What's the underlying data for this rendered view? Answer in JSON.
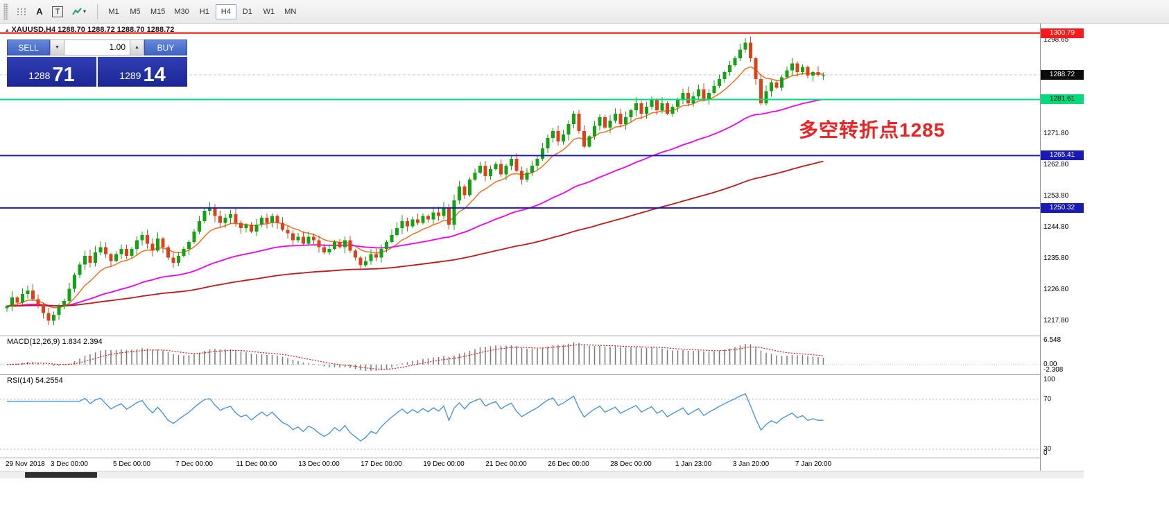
{
  "icons": {
    "collapse": "▴",
    "caret_down": "▾",
    "stepper_up": "▲",
    "stepper_down": "▼",
    "tool_a": "A",
    "tool_t": "T"
  },
  "toolbar": {
    "timeframes": [
      "M1",
      "M5",
      "M15",
      "M30",
      "H1",
      "H4",
      "D1",
      "W1",
      "MN"
    ],
    "active_timeframe": "H4"
  },
  "trade_panel": {
    "sell_label": "SELL",
    "buy_label": "BUY",
    "lot_value": "1.00",
    "sell_price_major": "1288",
    "sell_price_minor": "71",
    "buy_price_major": "1289",
    "buy_price_minor": "14"
  },
  "chart_data": {
    "type": "candlestick",
    "symbol": "XAUUSD",
    "timeframe": "H4",
    "ohlc_display": "XAUUSD,H4 1288.70 1288.72 1288.70 1288.72",
    "current": {
      "price": 1288.72,
      "label": "1288.72",
      "badge_color": "#0b0b0b",
      "text_color": "#ffffff"
    },
    "price_range": [
      1213.5,
      1303.5
    ],
    "up_color": "#10a410",
    "down_color": "#e04018",
    "closes": [
      1222.0,
      1224.5,
      1223.0,
      1225.5,
      1226.5,
      1224.0,
      1222.5,
      1220.0,
      1217.8,
      1219.5,
      1222.0,
      1223.5,
      1227.0,
      1231.0,
      1234.0,
      1236.5,
      1234.5,
      1237.5,
      1239.0,
      1237.0,
      1235.0,
      1237.0,
      1238.5,
      1236.5,
      1238.5,
      1241.0,
      1242.5,
      1240.0,
      1238.0,
      1241.5,
      1239.0,
      1236.0,
      1234.5,
      1236.5,
      1238.5,
      1240.5,
      1243.5,
      1246.5,
      1249.5,
      1250.3,
      1248.0,
      1246.0,
      1247.5,
      1248.5,
      1246.0,
      1244.5,
      1245.5,
      1243.5,
      1245.5,
      1247.5,
      1246.0,
      1248.0,
      1246.0,
      1244.0,
      1243.0,
      1241.0,
      1242.0,
      1240.0,
      1242.0,
      1241.0,
      1239.0,
      1237.5,
      1238.5,
      1240.5,
      1239.0,
      1241.0,
      1238.0,
      1236.0,
      1233.8,
      1235.0,
      1237.0,
      1236.0,
      1238.5,
      1240.5,
      1242.5,
      1244.5,
      1246.5,
      1245.0,
      1247.0,
      1246.0,
      1248.0,
      1247.0,
      1249.0,
      1248.0,
      1250.5,
      1245.5,
      1252.5,
      1256.5,
      1254.0,
      1258.5,
      1260.5,
      1262.5,
      1259.5,
      1261.5,
      1263.0,
      1260.0,
      1262.5,
      1264.5,
      1261.0,
      1258.5,
      1260.5,
      1262.5,
      1264.5,
      1267.5,
      1270.5,
      1272.5,
      1269.5,
      1271.5,
      1274.5,
      1277.5,
      1272.5,
      1268.0,
      1271.0,
      1274.0,
      1276.5,
      1273.5,
      1275.5,
      1277.5,
      1274.5,
      1276.5,
      1278.5,
      1280.5,
      1277.5,
      1279.5,
      1281.5,
      1278.5,
      1280.5,
      1277.5,
      1279.5,
      1281.5,
      1283.5,
      1280.5,
      1282.5,
      1284.5,
      1281.5,
      1283.5,
      1285.5,
      1287.5,
      1289.5,
      1291.5,
      1293.5,
      1296.0,
      1298.0,
      1293.5,
      1287.5,
      1280.5,
      1284.0,
      1286.5,
      1285.0,
      1288.0,
      1290.0,
      1292.0,
      1289.5,
      1291.0,
      1288.5,
      1289.5,
      1288.7,
      1288.72
    ],
    "moving_averages": [
      {
        "name": "fast",
        "period": 10,
        "color": "#f07020",
        "width": 1.5
      },
      {
        "name": "medium",
        "period": 50,
        "color": "#f000f0",
        "width": 1.8
      },
      {
        "name": "slow",
        "period": 140,
        "color": "#c01818",
        "width": 1.8
      }
    ],
    "levels": [
      {
        "label": "1300.79",
        "price": 1300.79,
        "color": "#ff1a1a",
        "text_color": "#ffffff",
        "width": 2.2
      },
      {
        "label": "1281.61",
        "price": 1281.61,
        "color": "#00dc7d",
        "text_color": "#000000",
        "width": 2
      },
      {
        "label": "1265.41",
        "price": 1265.41,
        "color": "#1a1ab8",
        "text_color": "#ffffff",
        "width": 2
      },
      {
        "label": "1250.32",
        "price": 1250.32,
        "color": "#1a1ab8",
        "text_color": "#ffffff",
        "width": 2
      }
    ],
    "y_ticks": [
      "1298.65",
      "1271.80",
      "1262.80",
      "1253.80",
      "1244.80",
      "1235.80",
      "1226.80",
      "1217.80"
    ],
    "annotation": {
      "text": "多空转折点1285",
      "color": "#ee2222"
    },
    "time_labels": [
      {
        "label": "29 Nov 2018",
        "index": 0
      },
      {
        "label": "3 Dec 00:00",
        "index": 12
      },
      {
        "label": "5 Dec 00:00",
        "index": 24
      },
      {
        "label": "7 Dec 00:00",
        "index": 36
      },
      {
        "label": "11 Dec 00:00",
        "index": 48
      },
      {
        "label": "13 Dec 00:00",
        "index": 60
      },
      {
        "label": "17 Dec 00:00",
        "index": 72
      },
      {
        "label": "19 Dec 00:00",
        "index": 84
      },
      {
        "label": "21 Dec 00:00",
        "index": 96
      },
      {
        "label": "26 Dec 00:00",
        "index": 108
      },
      {
        "label": "28 Dec 00:00",
        "index": 120
      },
      {
        "label": "1 Jan 23:00",
        "index": 132
      },
      {
        "label": "3 Jan 20:00",
        "index": 143
      },
      {
        "label": "7 Jan 20:00",
        "index": 155
      }
    ],
    "macd": {
      "label": "MACD(12,26,9) 1.834 2.394",
      "fast": 12,
      "slow": 26,
      "signal": 9,
      "display_values": [
        1.834,
        2.394
      ],
      "range": [
        -2.308,
        6.548
      ],
      "y_ticks": [
        "6.548",
        "0.00",
        "-2.308"
      ],
      "hist_color": "#787878",
      "signal_color": "#e01818"
    },
    "rsi": {
      "label": "RSI(14) 54.2554",
      "period": 14,
      "display_value": 54.2554,
      "levels": [
        70,
        30
      ],
      "y_ticks": [
        "100",
        "70",
        "30",
        "0"
      ],
      "color": "#3e8edc"
    }
  }
}
